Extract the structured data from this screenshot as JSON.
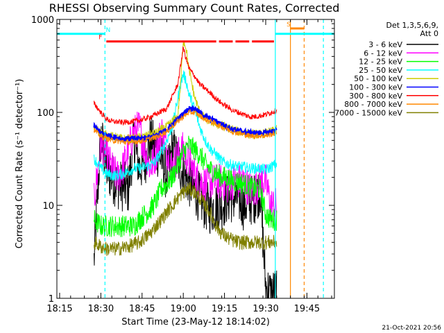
{
  "chart_data": {
    "type": "line",
    "title": "RHESSI Observing Summary Count Rates, Corrected",
    "xlabel": "Start Time (23-May-12 18:14:02)",
    "ylabel": "Corrected Count Rate (s⁻¹ detector⁻¹)",
    "yscale": "log",
    "ylim": [
      1,
      1000
    ],
    "xlim_minutes": [
      0,
      101
    ],
    "x_ticks": [
      "18:15",
      "18:30",
      "18:45",
      "19:00",
      "19:15",
      "19:30",
      "19:45"
    ],
    "x_tick_minutes": [
      1,
      16,
      31,
      46,
      61,
      76,
      91
    ],
    "y_ticks": [
      1,
      10,
      100,
      1000
    ],
    "y_tick_labels": [
      "1",
      "10",
      "100",
      "1000"
    ],
    "legend": {
      "position": "right",
      "header": [
        "Det 1,3,5,6,9,",
        "Att 0"
      ]
    },
    "series": [
      {
        "name": "3 - 6 keV",
        "color": "#000000",
        "x": [
          13.5,
          16,
          17,
          18,
          20,
          22,
          24,
          26,
          28,
          30,
          32,
          34,
          36,
          38,
          40,
          42,
          44,
          46,
          48,
          50,
          52,
          54,
          56,
          58,
          60,
          62,
          64,
          66,
          68,
          70,
          72,
          74,
          76,
          78,
          80
        ],
        "y": [
          2.5,
          55,
          40,
          25,
          20,
          17,
          16,
          15,
          50,
          25,
          30,
          50,
          40,
          32,
          20,
          40,
          30,
          22,
          18,
          15,
          12,
          10,
          9,
          10,
          10,
          12,
          12,
          12,
          10,
          11,
          12,
          15,
          1.3,
          1.1,
          1.2
        ]
      },
      {
        "name": "6 - 12 keV",
        "color": "#ff00ff",
        "x": [
          13.5,
          16,
          18,
          20,
          22,
          24,
          26,
          28,
          30,
          32,
          34,
          36,
          38,
          40,
          42,
          44,
          46,
          48,
          50,
          52,
          54,
          56,
          58,
          60,
          62,
          64,
          66,
          68,
          70,
          72,
          74,
          76,
          78,
          80
        ],
        "y": [
          11,
          45,
          35,
          25,
          20,
          25,
          40,
          60,
          70,
          40,
          25,
          35,
          65,
          40,
          25,
          35,
          40,
          30,
          22,
          18,
          17,
          18,
          18,
          18,
          16,
          18,
          18,
          18,
          15,
          15,
          18,
          18,
          10,
          10
        ]
      },
      {
        "name": "12 - 25 keV",
        "color": "#00ff00",
        "x": [
          13.5,
          16,
          18,
          20,
          22,
          24,
          26,
          28,
          30,
          32,
          34,
          36,
          38,
          40,
          42,
          44,
          46,
          48,
          50,
          52,
          54,
          56,
          58,
          60,
          62,
          64,
          66,
          68,
          70,
          72,
          74,
          76,
          78,
          80
        ],
        "y": [
          7,
          6,
          6,
          6,
          6,
          6,
          6,
          6,
          7,
          8,
          9,
          11,
          15,
          17,
          20,
          27,
          37,
          45,
          40,
          35,
          28,
          24,
          22,
          20,
          20,
          18,
          18,
          17,
          16,
          15,
          15,
          8,
          7,
          7
        ]
      },
      {
        "name": "25 - 50 keV",
        "color": "#00ffff",
        "x": [
          13.5,
          16,
          18,
          20,
          22,
          24,
          26,
          28,
          30,
          32,
          34,
          36,
          38,
          40,
          42,
          44,
          45,
          46,
          47,
          48,
          50,
          52,
          54,
          56,
          58,
          60,
          62,
          64,
          66,
          68,
          70,
          72,
          74,
          76,
          78,
          80
        ],
        "y": [
          32,
          25,
          22,
          21,
          21,
          22,
          23,
          25,
          25,
          26,
          27,
          30,
          38,
          50,
          70,
          140,
          200,
          260,
          220,
          160,
          110,
          70,
          50,
          40,
          35,
          30,
          28,
          27,
          26,
          26,
          25,
          25,
          25,
          24,
          26,
          28
        ]
      },
      {
        "name": "50 - 100 keV",
        "color": "#cccc00",
        "x": [
          13.5,
          16,
          20,
          24,
          28,
          32,
          36,
          40,
          44,
          45,
          46,
          47,
          48,
          50,
          52,
          54,
          56,
          58,
          60,
          62,
          64,
          66,
          68,
          70,
          72,
          74,
          76,
          78,
          80
        ],
        "y": [
          70,
          60,
          55,
          52,
          52,
          55,
          60,
          70,
          90,
          200,
          600,
          500,
          300,
          150,
          100,
          85,
          80,
          75,
          72,
          68,
          66,
          62,
          60,
          58,
          58,
          58,
          60,
          62,
          65
        ]
      },
      {
        "name": "100 - 300 keV",
        "color": "#0000ff",
        "x": [
          13.5,
          16,
          20,
          24,
          28,
          32,
          36,
          40,
          44,
          48,
          50,
          52,
          54,
          56,
          58,
          60,
          62,
          64,
          66,
          68,
          70,
          72,
          74,
          76,
          78,
          80
        ],
        "y": [
          72,
          60,
          55,
          52,
          52,
          53,
          56,
          65,
          85,
          110,
          110,
          100,
          90,
          85,
          80,
          75,
          70,
          66,
          64,
          62,
          60,
          60,
          60,
          60,
          62,
          64
        ]
      },
      {
        "name": "300 - 800 keV",
        "color": "#ff0000",
        "x": [
          13.5,
          16,
          18,
          20,
          24,
          28,
          32,
          36,
          40,
          44,
          46,
          47,
          48,
          50,
          52,
          54,
          56,
          58,
          60,
          62,
          64,
          66,
          68,
          70,
          72,
          74,
          76,
          78,
          80
        ],
        "y": [
          125,
          100,
          85,
          80,
          78,
          80,
          85,
          95,
          110,
          200,
          500,
          380,
          300,
          250,
          200,
          180,
          160,
          140,
          125,
          115,
          105,
          100,
          95,
          90,
          90,
          92,
          95,
          100,
          105
        ]
      },
      {
        "name": "800 - 7000 keV",
        "color": "#ff8800",
        "x": [
          13.5,
          16,
          20,
          24,
          28,
          32,
          36,
          40,
          44,
          48,
          50,
          52,
          54,
          56,
          58,
          60,
          62,
          64,
          66,
          68,
          70,
          72,
          74,
          76,
          78,
          80
        ],
        "y": [
          65,
          55,
          50,
          48,
          48,
          50,
          54,
          62,
          80,
          100,
          100,
          92,
          84,
          80,
          75,
          70,
          66,
          62,
          60,
          58,
          56,
          56,
          56,
          56,
          58,
          60
        ]
      },
      {
        "name": "7000 - 15000 keV",
        "color": "#808000",
        "x": [
          13.5,
          16,
          18,
          20,
          22,
          24,
          26,
          28,
          30,
          32,
          34,
          36,
          38,
          40,
          42,
          44,
          46,
          48,
          50,
          52,
          54,
          56,
          58,
          60,
          62,
          64,
          66,
          68,
          70,
          72,
          74,
          76,
          78,
          80
        ],
        "y": [
          4,
          3.6,
          3.4,
          3.4,
          3.4,
          3.5,
          3.6,
          3.8,
          4,
          4.5,
          5,
          6,
          7,
          8.5,
          10,
          12,
          14,
          15,
          14,
          12,
          10,
          8,
          6,
          5,
          4.5,
          4.2,
          4,
          4,
          4,
          4,
          4,
          4,
          4,
          4
        ]
      }
    ],
    "flags": [
      {
        "label": "N",
        "color": "#00ffff",
        "spans": [
          [
            0,
            17.5
          ],
          [
            79.5,
            101
          ]
        ]
      },
      {
        "label": "F",
        "color": "#ff0000",
        "spans": [
          [
            18,
            58
          ],
          [
            59,
            64
          ],
          [
            65,
            70
          ],
          [
            71,
            79
          ]
        ]
      },
      {
        "label": "S",
        "color": "#ff8800",
        "spans": [
          [
            85,
            90
          ]
        ]
      }
    ],
    "vlines": [
      {
        "x": 17.5,
        "color": "#00ffff",
        "style": "dashed"
      },
      {
        "x": 79.5,
        "color": "#00ffff",
        "style": "solid"
      },
      {
        "x": 85,
        "color": "#ff8800",
        "style": "solid"
      },
      {
        "x": 90,
        "color": "#ff8800",
        "style": "dashed"
      },
      {
        "x": 97,
        "color": "#00ffff",
        "style": "dashed"
      }
    ],
    "footer_date": "21-Oct-2021 20:56"
  }
}
